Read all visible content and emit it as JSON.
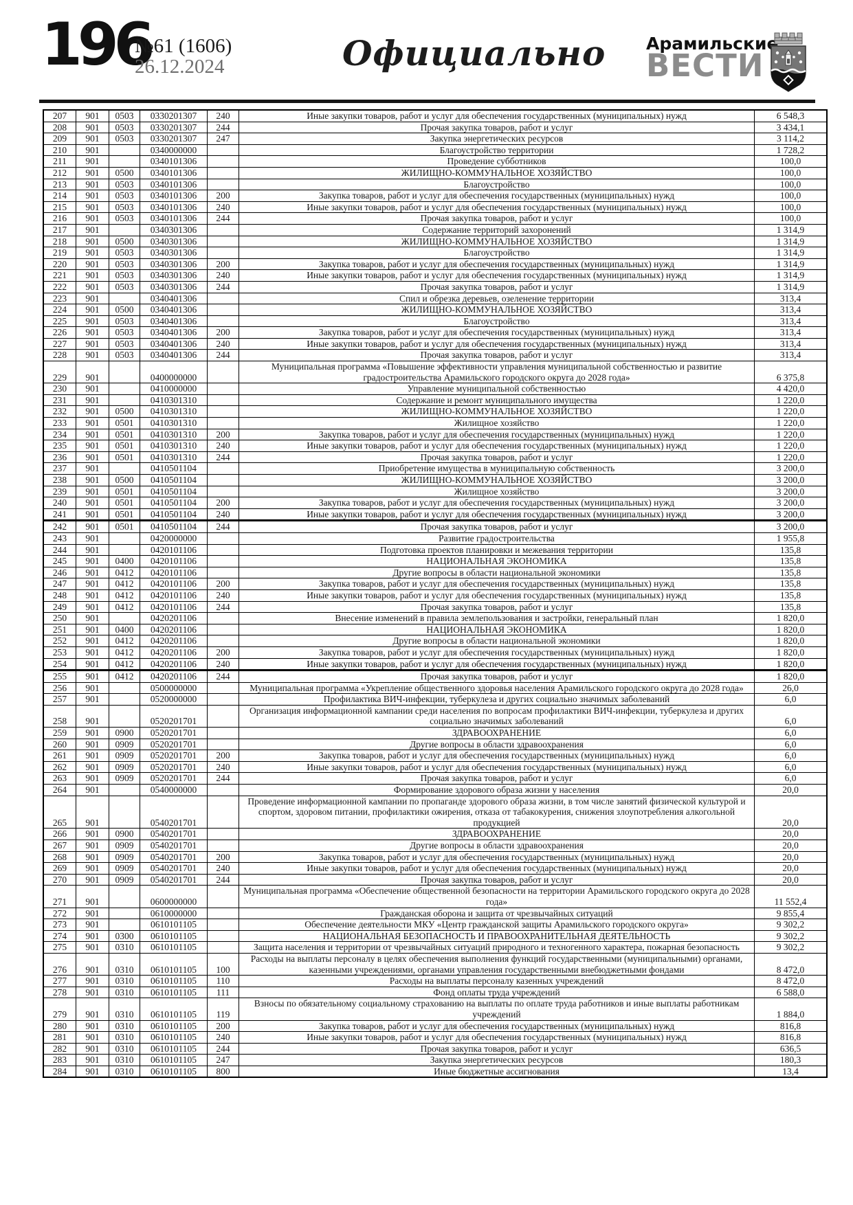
{
  "header": {
    "page_number": "196",
    "issue": "№61 (1606)",
    "date": "26.12.2024",
    "section_title": "Официально",
    "masthead_line1": "Арамильские",
    "masthead_line2": "ВЕСТИ",
    "emblem_icon": "city-emblem"
  },
  "colors": {
    "masthead_gray": "#8c8c8c",
    "date_gray": "#6e6e6e",
    "ink": "#1a1a1a"
  },
  "table": {
    "heavy_top_rows": [
      "242",
      "255"
    ],
    "rows": [
      [
        "207",
        "901",
        "0503",
        "0330201307",
        "240",
        "Иные закупки товаров, работ и услуг для обеспечения государственных (муниципальных) нужд",
        "6 548,3"
      ],
      [
        "208",
        "901",
        "0503",
        "0330201307",
        "244",
        "Прочая закупка товаров, работ и услуг",
        "3 434,1"
      ],
      [
        "209",
        "901",
        "0503",
        "0330201307",
        "247",
        "Закупка энергетических ресурсов",
        "3 114,2"
      ],
      [
        "210",
        "901",
        "",
        "0340000000",
        "",
        "Благоустройство территории",
        "1 728,2"
      ],
      [
        "211",
        "901",
        "",
        "0340101306",
        "",
        "Проведение субботников",
        "100,0"
      ],
      [
        "212",
        "901",
        "0500",
        "0340101306",
        "",
        "ЖИЛИЩНО-КОММУНАЛЬНОЕ ХОЗЯЙСТВО",
        "100,0"
      ],
      [
        "213",
        "901",
        "0503",
        "0340101306",
        "",
        "Благоустройство",
        "100,0"
      ],
      [
        "214",
        "901",
        "0503",
        "0340101306",
        "200",
        "Закупка товаров, работ и услуг для обеспечения государственных (муниципальных) нужд",
        "100,0"
      ],
      [
        "215",
        "901",
        "0503",
        "0340101306",
        "240",
        "Иные закупки товаров, работ и услуг для обеспечения государственных (муниципальных) нужд",
        "100,0"
      ],
      [
        "216",
        "901",
        "0503",
        "0340101306",
        "244",
        "Прочая закупка товаров, работ и услуг",
        "100,0"
      ],
      [
        "217",
        "901",
        "",
        "0340301306",
        "",
        "Содержание территорий захоронений",
        "1 314,9"
      ],
      [
        "218",
        "901",
        "0500",
        "0340301306",
        "",
        "ЖИЛИЩНО-КОММУНАЛЬНОЕ ХОЗЯЙСТВО",
        "1 314,9"
      ],
      [
        "219",
        "901",
        "0503",
        "0340301306",
        "",
        "Благоустройство",
        "1 314,9"
      ],
      [
        "220",
        "901",
        "0503",
        "0340301306",
        "200",
        "Закупка товаров, работ и услуг для обеспечения государственных (муниципальных) нужд",
        "1 314,9"
      ],
      [
        "221",
        "901",
        "0503",
        "0340301306",
        "240",
        "Иные закупки товаров, работ и услуг для обеспечения государственных (муниципальных) нужд",
        "1 314,9"
      ],
      [
        "222",
        "901",
        "0503",
        "0340301306",
        "244",
        "Прочая закупка товаров, работ и услуг",
        "1 314,9"
      ],
      [
        "223",
        "901",
        "",
        "0340401306",
        "",
        "Спил и обрезка деревьев, озеленение территории",
        "313,4"
      ],
      [
        "224",
        "901",
        "0500",
        "0340401306",
        "",
        "ЖИЛИЩНО-КОММУНАЛЬНОЕ ХОЗЯЙСТВО",
        "313,4"
      ],
      [
        "225",
        "901",
        "0503",
        "0340401306",
        "",
        "Благоустройство",
        "313,4"
      ],
      [
        "226",
        "901",
        "0503",
        "0340401306",
        "200",
        "Закупка товаров, работ и услуг для обеспечения государственных (муниципальных) нужд",
        "313,4"
      ],
      [
        "227",
        "901",
        "0503",
        "0340401306",
        "240",
        "Иные закупки товаров, работ и услуг для обеспечения государственных (муниципальных) нужд",
        "313,4"
      ],
      [
        "228",
        "901",
        "0503",
        "0340401306",
        "244",
        "Прочая закупка товаров, работ и услуг",
        "313,4"
      ],
      [
        "229",
        "901",
        "",
        "0400000000",
        "",
        "Муниципальная программа «Повышение эффективности управления муниципальной собственностью и развитие градостроительства Арамильского городского округа до 2028 года»",
        "6 375,8"
      ],
      [
        "230",
        "901",
        "",
        "0410000000",
        "",
        "Управление муниципальной собственностью",
        "4 420,0"
      ],
      [
        "231",
        "901",
        "",
        "0410301310",
        "",
        "Содержание и ремонт муниципального имущества",
        "1 220,0"
      ],
      [
        "232",
        "901",
        "0500",
        "0410301310",
        "",
        "ЖИЛИЩНО-КОММУНАЛЬНОЕ ХОЗЯЙСТВО",
        "1 220,0"
      ],
      [
        "233",
        "901",
        "0501",
        "0410301310",
        "",
        "Жилищное хозяйство",
        "1 220,0"
      ],
      [
        "234",
        "901",
        "0501",
        "0410301310",
        "200",
        "Закупка товаров, работ и услуг для обеспечения государственных (муниципальных) нужд",
        "1 220,0"
      ],
      [
        "235",
        "901",
        "0501",
        "0410301310",
        "240",
        "Иные закупки товаров, работ и услуг для обеспечения государственных (муниципальных) нужд",
        "1 220,0"
      ],
      [
        "236",
        "901",
        "0501",
        "0410301310",
        "244",
        "Прочая закупка товаров, работ и услуг",
        "1 220,0"
      ],
      [
        "237",
        "901",
        "",
        "0410501104",
        "",
        "Приобретение имущества в муниципальную собственность",
        "3 200,0"
      ],
      [
        "238",
        "901",
        "0500",
        "0410501104",
        "",
        "ЖИЛИЩНО-КОММУНАЛЬНОЕ ХОЗЯЙСТВО",
        "3 200,0"
      ],
      [
        "239",
        "901",
        "0501",
        "0410501104",
        "",
        "Жилищное хозяйство",
        "3 200,0"
      ],
      [
        "240",
        "901",
        "0501",
        "0410501104",
        "200",
        "Закупка товаров, работ и услуг для обеспечения государственных (муниципальных) нужд",
        "3 200,0"
      ],
      [
        "241",
        "901",
        "0501",
        "0410501104",
        "240",
        "Иные закупки товаров, работ и услуг для обеспечения государственных (муниципальных) нужд",
        "3 200,0"
      ],
      [
        "242",
        "901",
        "0501",
        "0410501104",
        "244",
        "Прочая закупка товаров, работ и услуг",
        "3 200,0"
      ],
      [
        "243",
        "901",
        "",
        "0420000000",
        "",
        "Развитие градостроительства",
        "1 955,8"
      ],
      [
        "244",
        "901",
        "",
        "0420101106",
        "",
        "Подготовка проектов планировки и межевания территории",
        "135,8"
      ],
      [
        "245",
        "901",
        "0400",
        "0420101106",
        "",
        "НАЦИОНАЛЬНАЯ ЭКОНОМИКА",
        "135,8"
      ],
      [
        "246",
        "901",
        "0412",
        "0420101106",
        "",
        "Другие вопросы в области национальной экономики",
        "135,8"
      ],
      [
        "247",
        "901",
        "0412",
        "0420101106",
        "200",
        "Закупка товаров, работ и услуг для обеспечения государственных (муниципальных) нужд",
        "135,8"
      ],
      [
        "248",
        "901",
        "0412",
        "0420101106",
        "240",
        "Иные закупки товаров, работ и услуг для обеспечения государственных (муниципальных) нужд",
        "135,8"
      ],
      [
        "249",
        "901",
        "0412",
        "0420101106",
        "244",
        "Прочая закупка товаров, работ и услуг",
        "135,8"
      ],
      [
        "250",
        "901",
        "",
        "0420201106",
        "",
        "Внесение изменений в правила землепользования и застройки, генеральный план",
        "1 820,0"
      ],
      [
        "251",
        "901",
        "0400",
        "0420201106",
        "",
        "НАЦИОНАЛЬНАЯ ЭКОНОМИКА",
        "1 820,0"
      ],
      [
        "252",
        "901",
        "0412",
        "0420201106",
        "",
        "Другие вопросы в области национальной экономики",
        "1 820,0"
      ],
      [
        "253",
        "901",
        "0412",
        "0420201106",
        "200",
        "Закупка товаров, работ и услуг для обеспечения государственных (муниципальных) нужд",
        "1 820,0"
      ],
      [
        "254",
        "901",
        "0412",
        "0420201106",
        "240",
        "Иные закупки товаров, работ и услуг для обеспечения государственных (муниципальных) нужд",
        "1 820,0"
      ],
      [
        "255",
        "901",
        "0412",
        "0420201106",
        "244",
        "Прочая закупка товаров, работ и услуг",
        "1 820,0"
      ],
      [
        "256",
        "901",
        "",
        "0500000000",
        "",
        "Муниципальная программа «Укрепление общественного здоровья населения Арамильского городского округа до 2028 года»",
        "26,0"
      ],
      [
        "257",
        "901",
        "",
        "0520000000",
        "",
        "Профилактика ВИЧ-инфекции, туберкулеза и других социально значимых заболеваний",
        "6,0"
      ],
      [
        "258",
        "901",
        "",
        "0520201701",
        "",
        "Организация информационной кампании среди населения по вопросам профилактики ВИЧ-инфекции, туберкулеза и других социально значимых заболеваний",
        "6,0"
      ],
      [
        "259",
        "901",
        "0900",
        "0520201701",
        "",
        "ЗДРАВООХРАНЕНИЕ",
        "6,0"
      ],
      [
        "260",
        "901",
        "0909",
        "0520201701",
        "",
        "Другие вопросы в области здравоохранения",
        "6,0"
      ],
      [
        "261",
        "901",
        "0909",
        "0520201701",
        "200",
        "Закупка товаров, работ и услуг для обеспечения государственных (муниципальных) нужд",
        "6,0"
      ],
      [
        "262",
        "901",
        "0909",
        "0520201701",
        "240",
        "Иные закупки товаров, работ и услуг для обеспечения государственных (муниципальных) нужд",
        "6,0"
      ],
      [
        "263",
        "901",
        "0909",
        "0520201701",
        "244",
        "Прочая закупка товаров, работ и услуг",
        "6,0"
      ],
      [
        "264",
        "901",
        "",
        "0540000000",
        "",
        "Формирование здорового образа жизни у населения",
        "20,0"
      ],
      [
        "265",
        "901",
        "",
        "0540201701",
        "",
        "Проведение информационной кампании по пропаганде здорового образа жизни, в том числе занятий физической культурой и спортом, здоровом питании, профилактики ожирения, отказа от табакокурения, снижения злоупотребления алкогольной продукцией",
        "20,0"
      ],
      [
        "266",
        "901",
        "0900",
        "0540201701",
        "",
        "ЗДРАВООХРАНЕНИЕ",
        "20,0"
      ],
      [
        "267",
        "901",
        "0909",
        "0540201701",
        "",
        "Другие вопросы в области здравоохранения",
        "20,0"
      ],
      [
        "268",
        "901",
        "0909",
        "0540201701",
        "200",
        "Закупка товаров, работ и услуг для обеспечения государственных (муниципальных) нужд",
        "20,0"
      ],
      [
        "269",
        "901",
        "0909",
        "0540201701",
        "240",
        "Иные закупки товаров, работ и услуг для обеспечения государственных (муниципальных) нужд",
        "20,0"
      ],
      [
        "270",
        "901",
        "0909",
        "0540201701",
        "244",
        "Прочая закупка товаров, работ и услуг",
        "20,0"
      ],
      [
        "271",
        "901",
        "",
        "0600000000",
        "",
        "Муниципальная программа «Обеспечение общественной безопасности на территории Арамильского городского округа до 2028 года»",
        "11 552,4"
      ],
      [
        "272",
        "901",
        "",
        "0610000000",
        "",
        "Гражданская оборона и защита от чрезвычайных ситуаций",
        "9 855,4"
      ],
      [
        "273",
        "901",
        "",
        "0610101105",
        "",
        "Обеспечение деятельности МКУ «Центр гражданской защиты Арамильского городского округа»",
        "9 302,2"
      ],
      [
        "274",
        "901",
        "0300",
        "0610101105",
        "",
        "НАЦИОНАЛЬНАЯ БЕЗОПАСНОСТЬ И ПРАВООХРАНИТЕЛЬНАЯ ДЕЯТЕЛЬНОСТЬ",
        "9 302,2"
      ],
      [
        "275",
        "901",
        "0310",
        "0610101105",
        "",
        "Защита населения и территории от чрезвычайных ситуаций природного и техногенного характера, пожарная безопасность",
        "9 302,2"
      ],
      [
        "276",
        "901",
        "0310",
        "0610101105",
        "100",
        "Расходы на выплаты персоналу в целях обеспечения выполнения функций государственными (муниципальными) органами, казенными учреждениями, органами управления государственными внебюджетными фондами",
        "8 472,0"
      ],
      [
        "277",
        "901",
        "0310",
        "0610101105",
        "110",
        "Расходы на выплаты персоналу казенных учреждений",
        "8 472,0"
      ],
      [
        "278",
        "901",
        "0310",
        "0610101105",
        "111",
        "Фонд оплаты труда учреждений",
        "6 588,0"
      ],
      [
        "279",
        "901",
        "0310",
        "0610101105",
        "119",
        "Взносы по обязательному социальному страхованию на выплаты по оплате труда работников и иные выплаты работникам учреждений",
        "1 884,0"
      ],
      [
        "280",
        "901",
        "0310",
        "0610101105",
        "200",
        "Закупка товаров, работ и услуг для обеспечения государственных (муниципальных) нужд",
        "816,8"
      ],
      [
        "281",
        "901",
        "0310",
        "0610101105",
        "240",
        "Иные закупки товаров, работ и услуг для обеспечения государственных (муниципальных) нужд",
        "816,8"
      ],
      [
        "282",
        "901",
        "0310",
        "0610101105",
        "244",
        "Прочая закупка товаров, работ и услуг",
        "636,5"
      ],
      [
        "283",
        "901",
        "0310",
        "0610101105",
        "247",
        "Закупка энергетических ресурсов",
        "180,3"
      ],
      [
        "284",
        "901",
        "0310",
        "0610101105",
        "800",
        "Иные бюджетные ассигнования",
        "13,4"
      ]
    ]
  }
}
